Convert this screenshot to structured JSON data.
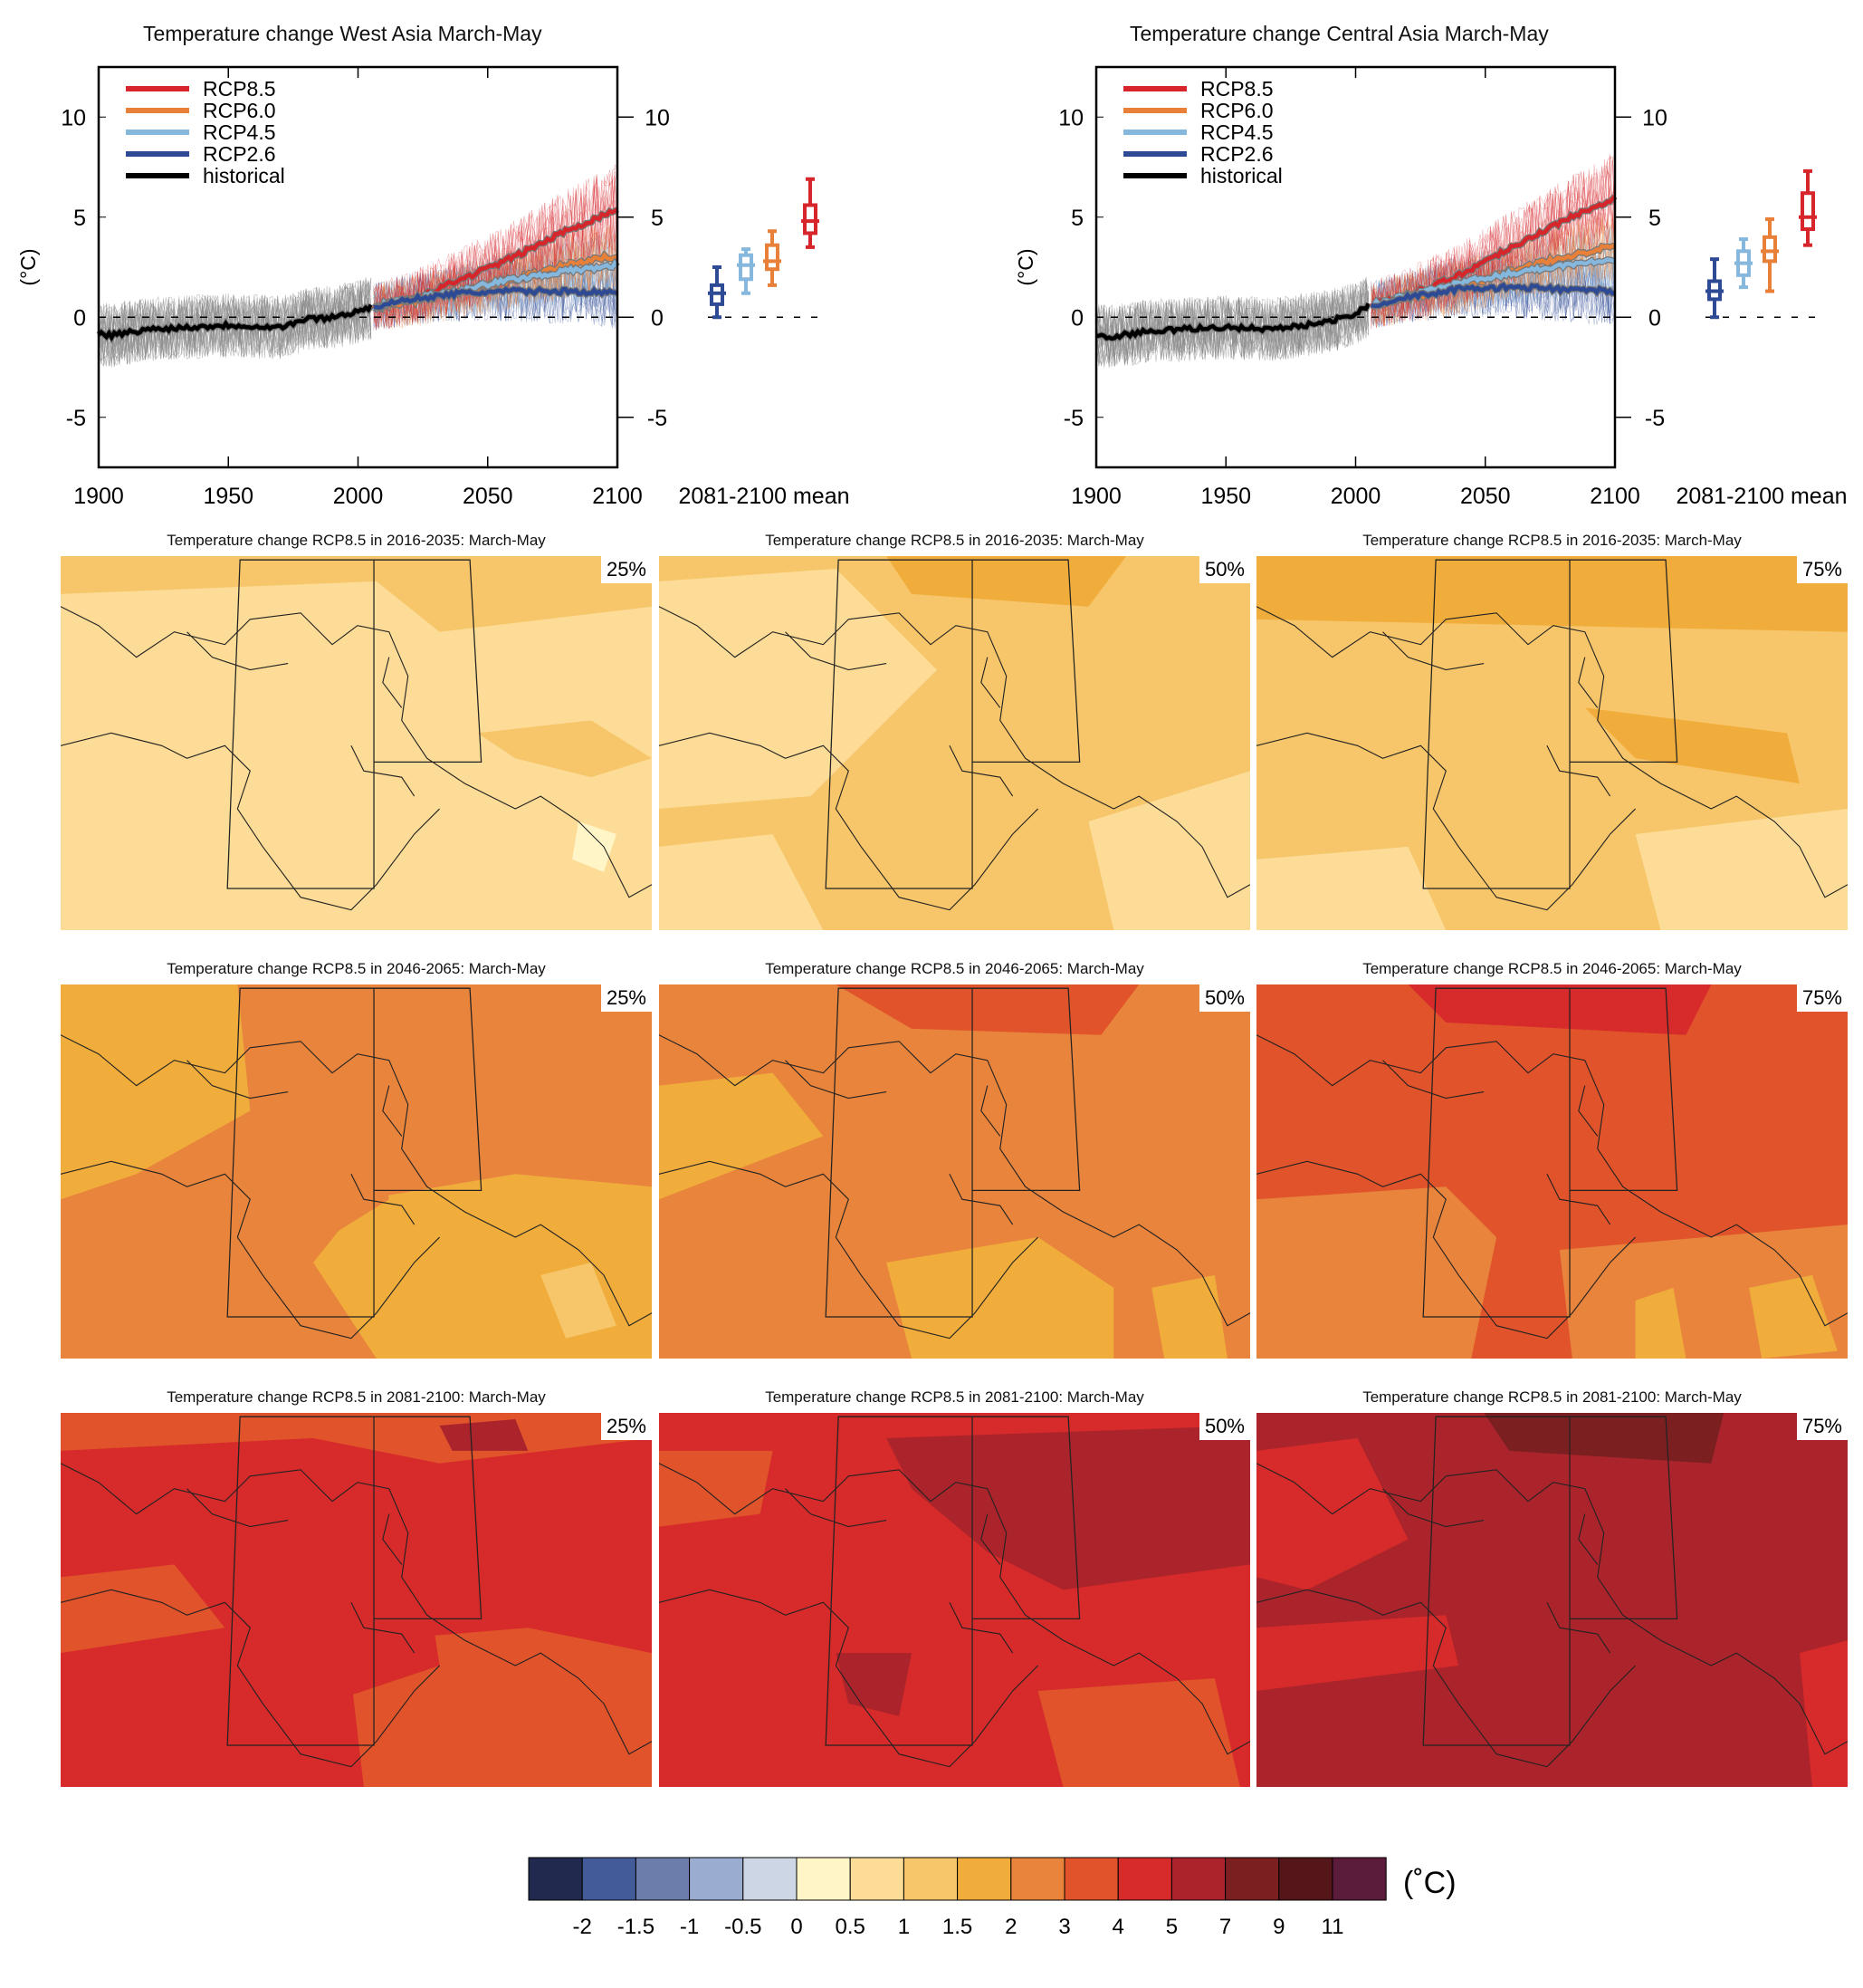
{
  "colors": {
    "rcp85": "#d7262b",
    "rcp60": "#e8803a",
    "rcp45": "#86b7dd",
    "rcp26": "#2f4a94",
    "historical": "#000000",
    "spread_hist": "#8a8a8a"
  },
  "chart_data": [
    {
      "type": "line",
      "title": "Temperature change West Asia March-May",
      "ylabel": "(°C)",
      "xlim": [
        1900,
        2100
      ],
      "ylim": [
        -7.5,
        12.5
      ],
      "xticks": [
        "1900",
        "1950",
        "2000",
        "2050",
        "2100"
      ],
      "yticks": [
        "10",
        "5",
        "0",
        "-5"
      ],
      "legend": [
        "RCP8.5",
        "RCP6.0",
        "RCP4.5",
        "RCP2.6",
        "historical"
      ],
      "legend_position": "top-left",
      "series": [
        {
          "name": "historical",
          "x": [
            1900,
            1905,
            1920,
            1950,
            1970,
            1980,
            1990,
            2000,
            2005
          ],
          "y": [
            -0.8,
            -0.9,
            -0.6,
            -0.4,
            -0.5,
            -0.1,
            0.0,
            0.3,
            0.5
          ]
        },
        {
          "name": "RCP8.5",
          "x": [
            2006,
            2020,
            2040,
            2060,
            2080,
            2100
          ],
          "y": [
            0.5,
            0.9,
            1.9,
            3.0,
            4.3,
            5.4
          ]
        },
        {
          "name": "RCP6.0",
          "x": [
            2006,
            2020,
            2040,
            2060,
            2080,
            2100
          ],
          "y": [
            0.5,
            0.8,
            1.3,
            1.9,
            2.6,
            3.1
          ]
        },
        {
          "name": "RCP4.5",
          "x": [
            2006,
            2020,
            2040,
            2060,
            2080,
            2100
          ],
          "y": [
            0.5,
            0.9,
            1.4,
            1.9,
            2.3,
            2.6
          ]
        },
        {
          "name": "RCP2.6",
          "x": [
            2006,
            2020,
            2040,
            2060,
            2080,
            2100
          ],
          "y": [
            0.5,
            0.9,
            1.2,
            1.3,
            1.3,
            1.2
          ]
        }
      ],
      "boxplot_label": "2081-2100 mean",
      "boxplots": [
        {
          "name": "RCP2.6",
          "min": 0.0,
          "q1": 0.65,
          "median": 1.2,
          "q3": 1.6,
          "max": 2.5
        },
        {
          "name": "RCP4.5",
          "min": 1.2,
          "q1": 1.9,
          "median": 2.6,
          "q3": 3.1,
          "max": 3.4
        },
        {
          "name": "RCP6.0",
          "min": 1.6,
          "q1": 2.4,
          "median": 2.8,
          "q3": 3.6,
          "max": 4.3
        },
        {
          "name": "RCP8.5",
          "min": 3.5,
          "q1": 4.2,
          "median": 4.8,
          "q3": 5.6,
          "max": 6.9
        }
      ]
    },
    {
      "type": "line",
      "title": "Temperature change Central Asia March-May",
      "ylabel": "(°C)",
      "xlim": [
        1900,
        2100
      ],
      "ylim": [
        -7.5,
        12.5
      ],
      "xticks": [
        "1900",
        "1950",
        "2000",
        "2050",
        "2100"
      ],
      "yticks": [
        "10",
        "5",
        "0",
        "-5"
      ],
      "legend": [
        "RCP8.5",
        "RCP6.0",
        "RCP4.5",
        "RCP2.6",
        "historical"
      ],
      "legend_position": "top-left",
      "series": [
        {
          "name": "historical",
          "x": [
            1900,
            1905,
            1920,
            1950,
            1970,
            1980,
            1990,
            2000,
            2005
          ],
          "y": [
            -0.9,
            -1.0,
            -0.7,
            -0.5,
            -0.6,
            -0.4,
            -0.2,
            0.2,
            0.6
          ]
        },
        {
          "name": "RCP8.5",
          "x": [
            2006,
            2020,
            2040,
            2060,
            2080,
            2100
          ],
          "y": [
            0.6,
            1.1,
            2.1,
            3.5,
            4.8,
            6.0
          ]
        },
        {
          "name": "RCP6.0",
          "x": [
            2006,
            2020,
            2040,
            2060,
            2080,
            2100
          ],
          "y": [
            0.6,
            1.0,
            1.5,
            2.3,
            3.0,
            3.6
          ]
        },
        {
          "name": "RCP4.5",
          "x": [
            2006,
            2020,
            2040,
            2060,
            2080,
            2100
          ],
          "y": [
            0.6,
            1.1,
            1.7,
            2.2,
            2.6,
            2.9
          ]
        },
        {
          "name": "RCP2.6",
          "x": [
            2006,
            2020,
            2040,
            2060,
            2080,
            2100
          ],
          "y": [
            0.6,
            1.0,
            1.4,
            1.5,
            1.4,
            1.3
          ]
        }
      ],
      "boxplot_label": "2081-2100 mean",
      "boxplots": [
        {
          "name": "RCP2.6",
          "min": 0.0,
          "q1": 0.9,
          "median": 1.3,
          "q3": 1.8,
          "max": 2.9
        },
        {
          "name": "RCP4.5",
          "min": 1.5,
          "q1": 2.1,
          "median": 2.7,
          "q3": 3.3,
          "max": 3.9
        },
        {
          "name": "RCP6.0",
          "min": 1.3,
          "q1": 2.8,
          "median": 3.3,
          "q3": 4.0,
          "max": 4.9
        },
        {
          "name": "RCP8.5",
          "min": 3.6,
          "q1": 4.4,
          "median": 5.0,
          "q3": 6.2,
          "max": 7.3
        }
      ]
    },
    {
      "type": "heatmap",
      "maps": [
        {
          "title": "Temperature change RCP8.5 in 2016-2035: March-May",
          "percentile": "25%",
          "dominant_class": "0.5-1"
        },
        {
          "title": "Temperature change RCP8.5 in 2016-2035: March-May",
          "percentile": "50%",
          "dominant_class": "1-1.5"
        },
        {
          "title": "Temperature change RCP8.5 in 2016-2035: March-May",
          "percentile": "75%",
          "dominant_class": "1-1.5"
        },
        {
          "title": "Temperature change RCP8.5 in 2046-2065: March-May",
          "percentile": "25%",
          "dominant_class": "2-3"
        },
        {
          "title": "Temperature change RCP8.5 in 2046-2065: March-May",
          "percentile": "50%",
          "dominant_class": "2-3"
        },
        {
          "title": "Temperature change RCP8.5 in 2046-2065: March-May",
          "percentile": "75%",
          "dominant_class": "3-4"
        },
        {
          "title": "Temperature change RCP8.5 in 2081-2100: March-May",
          "percentile": "25%",
          "dominant_class": "4-5"
        },
        {
          "title": "Temperature change RCP8.5 in 2081-2100: March-May",
          "percentile": "50%",
          "dominant_class": "4-5"
        },
        {
          "title": "Temperature change RCP8.5 in 2081-2100: March-May",
          "percentile": "75%",
          "dominant_class": "5-7"
        }
      ],
      "colorbar": {
        "unit": "(˚C)",
        "labels": [
          "-2",
          "-1.5",
          "-1",
          "-0.5",
          "0",
          "0.5",
          "1",
          "1.5",
          "2",
          "3",
          "4",
          "5",
          "7",
          "9",
          "11"
        ],
        "colors": [
          "#212a4e",
          "#435c99",
          "#6c7cab",
          "#9aacd0",
          "#cdd6e4",
          "#fff5c6",
          "#fcdc96",
          "#f7c66a",
          "#f0ad3c",
          "#e8843c",
          "#e0532b",
          "#d72a2a",
          "#ab242b",
          "#7c1f21",
          "#551619",
          "#5b1b3a"
        ]
      }
    }
  ]
}
